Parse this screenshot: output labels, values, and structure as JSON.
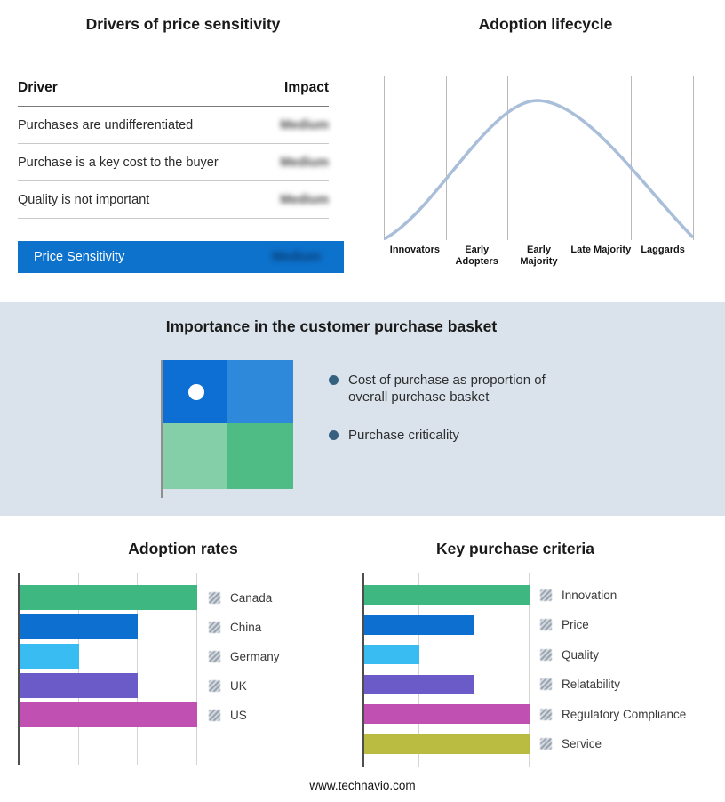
{
  "footer": {
    "text": "www.technavio.com"
  },
  "colors": {
    "accent_bar": "#0D72CC",
    "curve": "#A9BED9",
    "band_bg": "#DAE3EC"
  },
  "drivers": {
    "title": "Drivers of price sensitivity",
    "header": {
      "driver": "Driver",
      "impact": "Impact"
    },
    "rows": [
      {
        "driver": "Purchases are undifferentiated",
        "impact": "Medium"
      },
      {
        "driver": "Purchase is a key cost to the buyer",
        "impact": "Medium"
      },
      {
        "driver": "Quality is not important",
        "impact": "Medium"
      }
    ],
    "summary": {
      "label": "Price Sensitivity",
      "impact": "Medium"
    }
  },
  "basket": {
    "title": "Importance in the customer purchase basket",
    "bullets": [
      "Cost of purchase as proportion of overall purchase basket",
      "Purchase criticality"
    ],
    "matrix_colors": {
      "top_left": "#0D6FD3",
      "top_right": "#2F89DB",
      "bottom_left": "#85CFA8",
      "bottom_right": "#4FBC86"
    }
  },
  "chart_data": [
    {
      "type": "line",
      "title": "Adoption lifecycle",
      "x": [
        "Innovators",
        "Early Adopters",
        "Early Majority",
        "Late Majority",
        "Laggards"
      ],
      "values_normalized": [
        0.08,
        0.55,
        1.0,
        0.6,
        0.08
      ],
      "note": "bell-shaped adoption curve, no numeric axes shown",
      "grid": "vertical segment dividers",
      "legend_position": "none",
      "curve_color": "#A9BED9"
    },
    {
      "type": "bar",
      "title": "Adoption rates",
      "orientation": "horizontal",
      "categories": [
        "Canada",
        "China",
        "Germany",
        "UK",
        "US"
      ],
      "values": [
        3,
        2,
        1,
        2,
        3
      ],
      "xlim": [
        0,
        3
      ],
      "axis_tick_labels": "none shown",
      "grid": true,
      "legend_position": "right",
      "colors": [
        "#3EB880",
        "#0D6FD0",
        "#39BCF2",
        "#6A5BC8",
        "#C051B3"
      ]
    },
    {
      "type": "bar",
      "title": "Key purchase criteria",
      "orientation": "horizontal",
      "categories": [
        "Innovation",
        "Price",
        "Quality",
        "Relatability",
        "Regulatory Compliance",
        "Service"
      ],
      "values": [
        3,
        2,
        1,
        2,
        3,
        3
      ],
      "xlim": [
        0,
        3
      ],
      "axis_tick_labels": "none shown",
      "grid": true,
      "legend_position": "right",
      "colors": [
        "#3EB880",
        "#0D6FD0",
        "#39BCF2",
        "#6A5BC8",
        "#C051B3",
        "#B9BC41"
      ]
    }
  ]
}
